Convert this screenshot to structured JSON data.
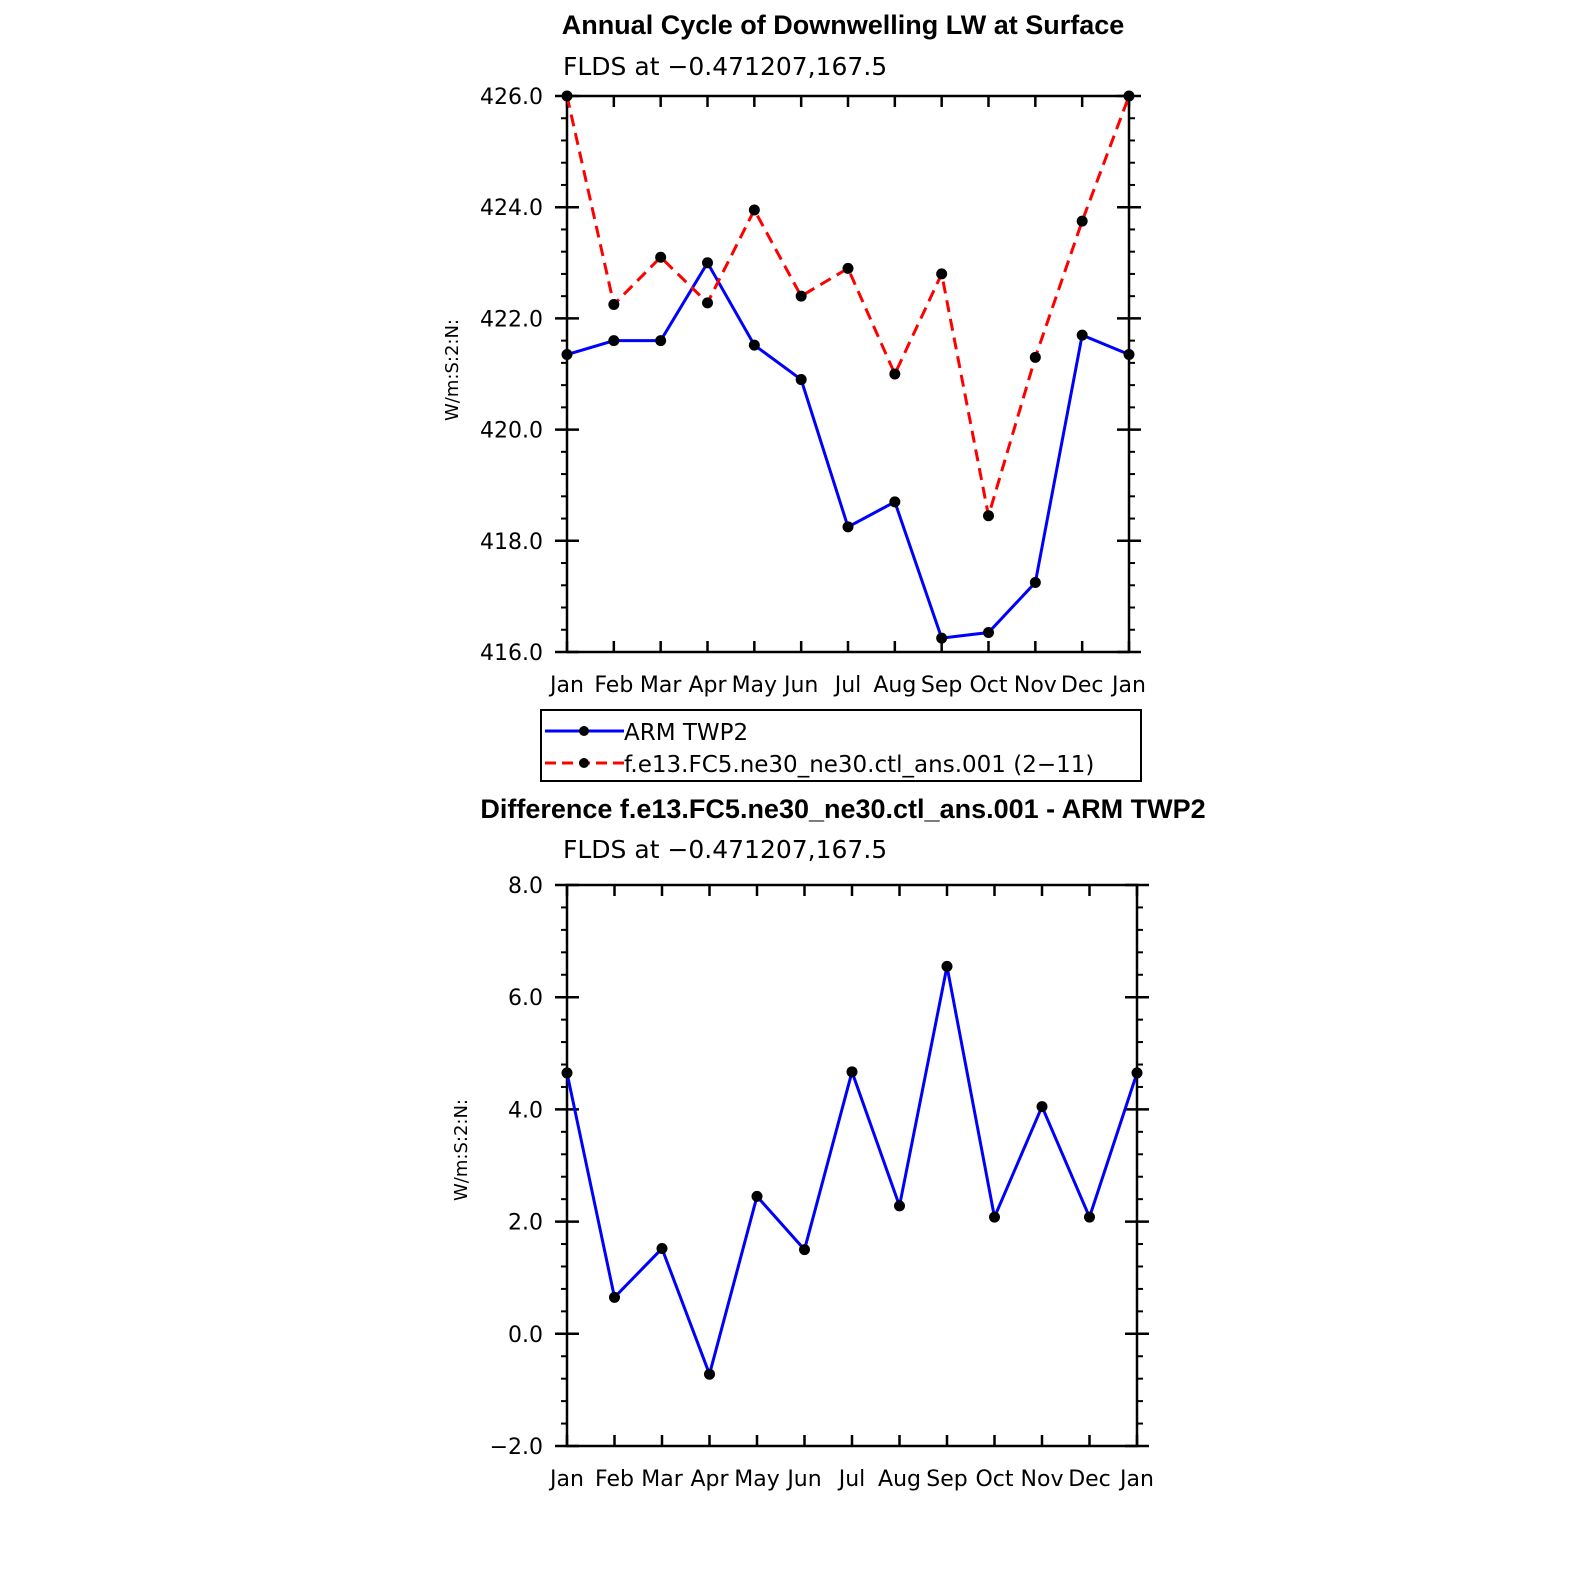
{
  "chart_data": [
    {
      "type": "line",
      "title": "Annual Cycle of Downwelling LW at Surface",
      "subtitle": "FLDS at −0.471207,167.5",
      "ylabel": "W/m:S:2:N:",
      "categories": [
        "Jan",
        "Feb",
        "Mar",
        "Apr",
        "May",
        "Jun",
        "Jul",
        "Aug",
        "Sep",
        "Oct",
        "Nov",
        "Dec",
        "Jan"
      ],
      "ylim": [
        416.0,
        426.0
      ],
      "yticks": [
        "416.0",
        "418.0",
        "420.0",
        "422.0",
        "424.0",
        "426.0"
      ],
      "series": [
        {
          "name": "ARM TWP2",
          "color": "#0000ff",
          "dashed": false,
          "values": [
            421.35,
            421.6,
            421.6,
            423.0,
            421.52,
            420.9,
            418.25,
            418.7,
            416.25,
            416.35,
            417.25,
            421.7,
            421.35
          ]
        },
        {
          "name": "f.e13.FC5.ne30_ne30.ctl_ans.001 (2−11)",
          "color": "#ff0000",
          "dashed": true,
          "values": [
            426.0,
            422.25,
            423.1,
            422.28,
            423.95,
            422.4,
            422.9,
            421.0,
            422.8,
            418.45,
            421.3,
            423.75,
            426.0
          ]
        }
      ]
    },
    {
      "type": "line",
      "title": "Difference f.e13.FC5.ne30_ne30.ctl_ans.001 - ARM TWP2",
      "subtitle": "FLDS at −0.471207,167.5",
      "ylabel": "W/m:S:2:N:",
      "categories": [
        "Jan",
        "Feb",
        "Mar",
        "Apr",
        "May",
        "Jun",
        "Jul",
        "Aug",
        "Sep",
        "Oct",
        "Nov",
        "Dec",
        "Jan"
      ],
      "ylim": [
        -2.0,
        8.0
      ],
      "yticks": [
        "−2.0",
        "0.0",
        "2.0",
        "4.0",
        "6.0",
        "8.0"
      ],
      "series": [
        {
          "color": "#0000ff",
          "dashed": false,
          "values": [
            4.65,
            0.65,
            1.52,
            -0.72,
            2.45,
            1.5,
            4.67,
            2.28,
            6.55,
            2.08,
            4.05,
            2.08,
            4.65
          ]
        }
      ]
    }
  ]
}
